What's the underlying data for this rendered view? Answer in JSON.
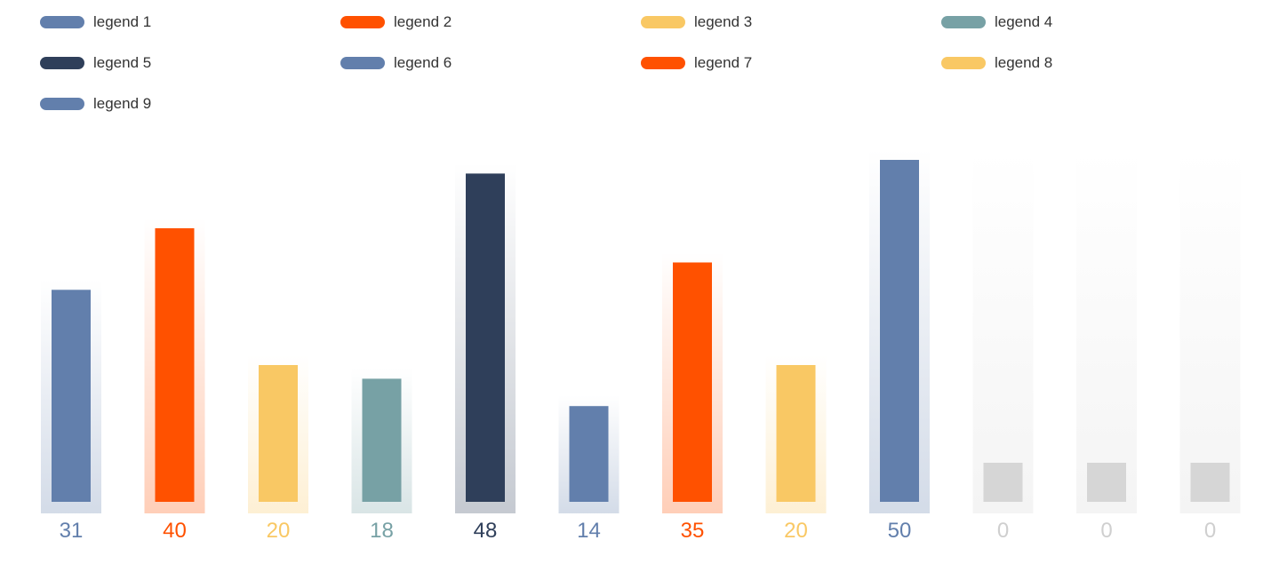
{
  "chart_data": {
    "type": "bar",
    "title": "",
    "xlabel": "",
    "ylabel": "",
    "ylim": [
      0,
      50
    ],
    "grid": false,
    "legend_position": "top",
    "legend": [
      {
        "name": "legend 1",
        "color": "#627fac"
      },
      {
        "name": "legend 2",
        "color": "#ff5100"
      },
      {
        "name": "legend 3",
        "color": "#f9c864"
      },
      {
        "name": "legend 4",
        "color": "#77a1a5"
      },
      {
        "name": "legend 5",
        "color": "#2f3f5a"
      },
      {
        "name": "legend 6",
        "color": "#627fac"
      },
      {
        "name": "legend 7",
        "color": "#ff5100"
      },
      {
        "name": "legend 8",
        "color": "#f9c864"
      },
      {
        "name": "legend 9",
        "color": "#627fac"
      }
    ],
    "bars": [
      {
        "value": 31,
        "color": "#627fac",
        "label": "31"
      },
      {
        "value": 40,
        "color": "#ff5100",
        "label": "40"
      },
      {
        "value": 20,
        "color": "#f9c864",
        "label": "20"
      },
      {
        "value": 18,
        "color": "#77a1a5",
        "label": "18"
      },
      {
        "value": 48,
        "color": "#2f3f5a",
        "label": "48"
      },
      {
        "value": 14,
        "color": "#627fac",
        "label": "14"
      },
      {
        "value": 35,
        "color": "#ff5100",
        "label": "35"
      },
      {
        "value": 20,
        "color": "#f9c864",
        "label": "20"
      },
      {
        "value": 50,
        "color": "#627fac",
        "label": "50"
      },
      {
        "value": 0,
        "color": "#d6d6d6",
        "label": "0"
      },
      {
        "value": 0,
        "color": "#d6d6d6",
        "label": "0"
      },
      {
        "value": 0,
        "color": "#d6d6d6",
        "label": "0"
      }
    ]
  }
}
